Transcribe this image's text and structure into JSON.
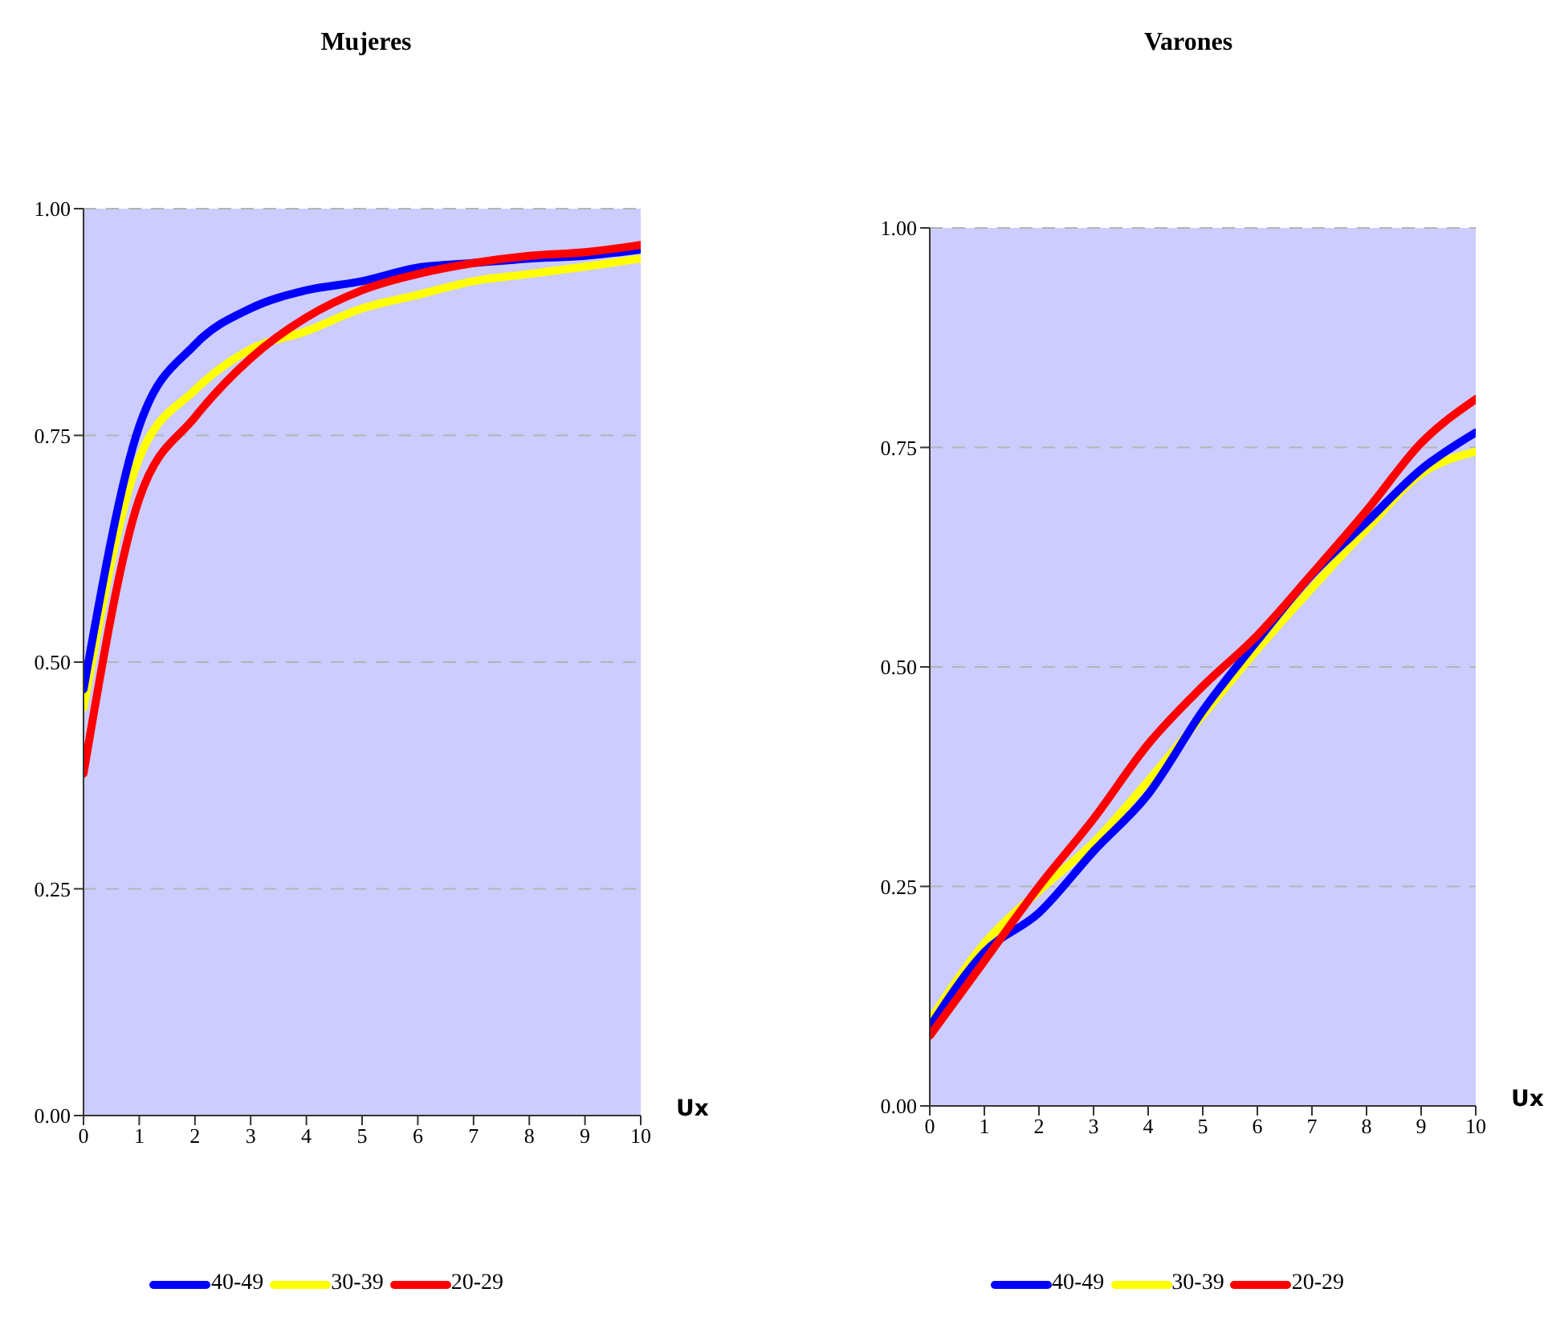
{
  "chart_data": [
    {
      "type": "line",
      "title": "Mujeres",
      "xlabel": "Ux",
      "x": [
        0,
        1,
        2,
        3,
        4,
        5,
        6,
        7,
        8,
        9,
        10
      ],
      "xlim": [
        0,
        10
      ],
      "xticks": [
        0,
        1,
        2,
        3,
        4,
        5,
        6,
        7,
        8,
        9,
        10
      ],
      "ylim": [
        0,
        1
      ],
      "yticks": [
        {
          "value": 0,
          "label": "0.00"
        },
        {
          "value": 0.25,
          "label": "0.25"
        },
        {
          "value": 0.5,
          "label": "0.50"
        },
        {
          "value": 0.75,
          "label": "0.75"
        },
        {
          "value": 1,
          "label": "1.00"
        }
      ],
      "grid": "y",
      "legend": "bottom",
      "series": [
        {
          "name": "40-49",
          "color": "#0000ff",
          "values": [
            0.47,
            0.76,
            0.85,
            0.89,
            0.91,
            0.92,
            0.935,
            0.94,
            0.945,
            0.948,
            0.955
          ]
        },
        {
          "name": "30-39",
          "color": "#ffff00",
          "values": [
            0.45,
            0.725,
            0.8,
            0.845,
            0.865,
            0.89,
            0.905,
            0.92,
            0.928,
            0.936,
            0.945
          ]
        },
        {
          "name": "20-29",
          "color": "#ff0000",
          "values": [
            0.377,
            0.68,
            0.77,
            0.835,
            0.88,
            0.91,
            0.928,
            0.94,
            0.948,
            0.952,
            0.96
          ]
        }
      ]
    },
    {
      "type": "line",
      "title": "Varones",
      "xlabel": "Ux",
      "x": [
        0,
        1,
        2,
        3,
        4,
        5,
        6,
        7,
        8,
        9,
        10
      ],
      "xlim": [
        0,
        10
      ],
      "xticks": [
        0,
        1,
        2,
        3,
        4,
        5,
        6,
        7,
        8,
        9,
        10
      ],
      "ylim": [
        0,
        1
      ],
      "yticks": [
        {
          "value": 0,
          "label": "0.00"
        },
        {
          "value": 0.25,
          "label": "0.25"
        },
        {
          "value": 0.5,
          "label": "0.50"
        },
        {
          "value": 0.75,
          "label": "0.75"
        },
        {
          "value": 1,
          "label": "1.00"
        }
      ],
      "grid": "y",
      "legend": "bottom",
      "series": [
        {
          "name": "40-49",
          "color": "#0000ff",
          "values": [
            0.09,
            0.175,
            0.22,
            0.29,
            0.355,
            0.45,
            0.53,
            0.605,
            0.665,
            0.725,
            0.767
          ]
        },
        {
          "name": "30-39",
          "color": "#ffff00",
          "values": [
            0.097,
            0.185,
            0.245,
            0.3,
            0.37,
            0.445,
            0.52,
            0.59,
            0.657,
            0.72,
            0.745
          ]
        },
        {
          "name": "20-29",
          "color": "#ff0000",
          "values": [
            0.08,
            0.165,
            0.25,
            0.327,
            0.412,
            0.478,
            0.536,
            0.606,
            0.678,
            0.755,
            0.805
          ]
        }
      ]
    }
  ]
}
